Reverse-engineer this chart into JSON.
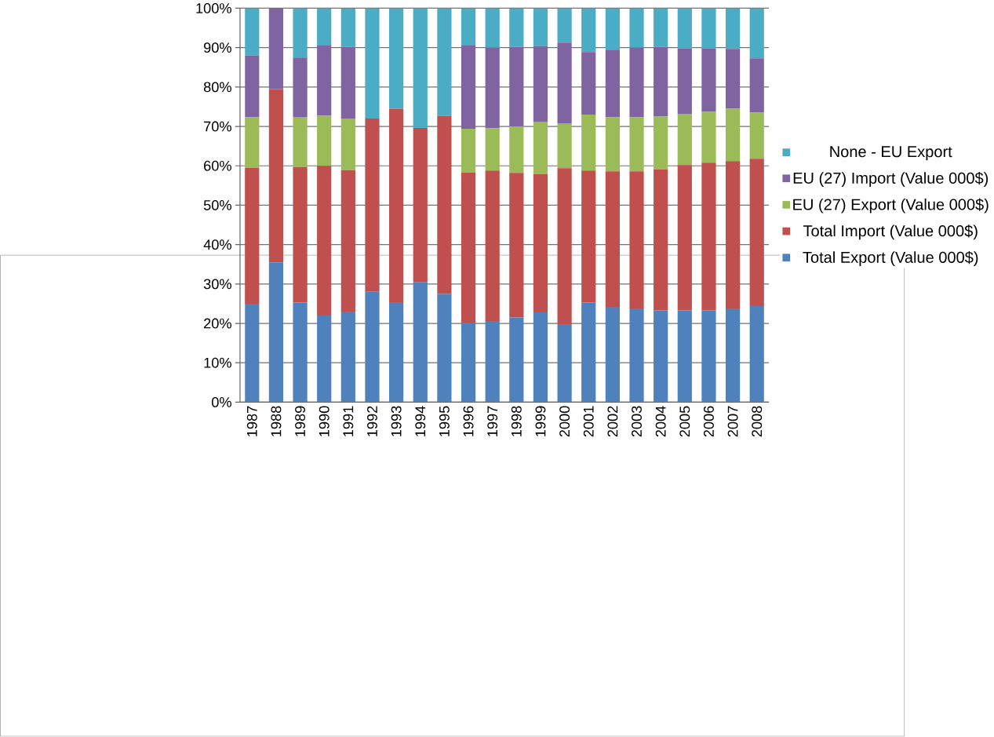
{
  "chart_data": {
    "type": "bar",
    "stacked": true,
    "categories": [
      "1987",
      "1988",
      "1989",
      "1990",
      "1991",
      "1992",
      "1993",
      "1994",
      "1995",
      "1996",
      "1997",
      "1998",
      "1999",
      "2000",
      "2001",
      "2002",
      "2003",
      "2004",
      "2005",
      "2006",
      "2007",
      "2008"
    ],
    "series": [
      {
        "name": "Total Export  (Value 000$)",
        "color": "#4f81bd",
        "values": [
          25,
          35.5,
          25.3,
          22,
          23,
          28,
          25.4,
          30.5,
          27.5,
          20.2,
          20.6,
          21.5,
          22.8,
          19.8,
          25.3,
          24.2,
          23.8,
          23.3,
          23.3,
          23.3,
          23.8,
          24.4
        ]
      },
      {
        "name": "Total Import (Value 000$)",
        "color": "#c0504d",
        "values": [
          34.5,
          44,
          34.4,
          38,
          35.9,
          44,
          49.1,
          39.1,
          45.2,
          38.1,
          38.2,
          36.7,
          35.1,
          39.6,
          33.5,
          34.4,
          34.8,
          35.8,
          36.9,
          37.5,
          37.4,
          37.4
        ]
      },
      {
        "name": "EU (27) Export (Value 000$)",
        "color": "#9bbb59",
        "values": [
          12.8,
          0,
          12.7,
          12.7,
          13.1,
          0,
          0,
          0,
          0,
          11.1,
          10.7,
          11.8,
          13.3,
          11.4,
          14.2,
          13.7,
          13.7,
          13.4,
          13,
          12.9,
          13.3,
          11.7
        ]
      },
      {
        "name": "EU (27) Import (Value 000$)",
        "color": "#8064a2",
        "values": [
          15.7,
          20.5,
          15.1,
          18,
          18.2,
          0,
          0,
          0,
          0,
          21.3,
          20.5,
          20.2,
          19.2,
          20.5,
          15.9,
          17.2,
          17.7,
          17.7,
          16.6,
          16.1,
          15.2,
          13.8
        ]
      },
      {
        "name": "None - EU Export",
        "color": "#4bacc6",
        "values": [
          12,
          0,
          12.5,
          9.3,
          9.8,
          28,
          25.5,
          30.4,
          27.3,
          9.3,
          10,
          9.8,
          9.6,
          8.7,
          11.1,
          10.5,
          10,
          9.8,
          10.2,
          10.2,
          10.3,
          12.7
        ]
      }
    ],
    "ylim": [
      0,
      100
    ],
    "yticks": [
      {
        "value": 0,
        "label": "0%"
      },
      {
        "value": 10,
        "label": "10%"
      },
      {
        "value": 20,
        "label": "20%"
      },
      {
        "value": 30,
        "label": "30%"
      },
      {
        "value": 40,
        "label": "40%"
      },
      {
        "value": 50,
        "label": "50%"
      },
      {
        "value": 60,
        "label": "60%"
      },
      {
        "value": 70,
        "label": "70%"
      },
      {
        "value": 80,
        "label": "80%"
      },
      {
        "value": 90,
        "label": "90%"
      },
      {
        "value": 100,
        "label": "100%"
      }
    ],
    "grid": "y",
    "legend": "right"
  }
}
